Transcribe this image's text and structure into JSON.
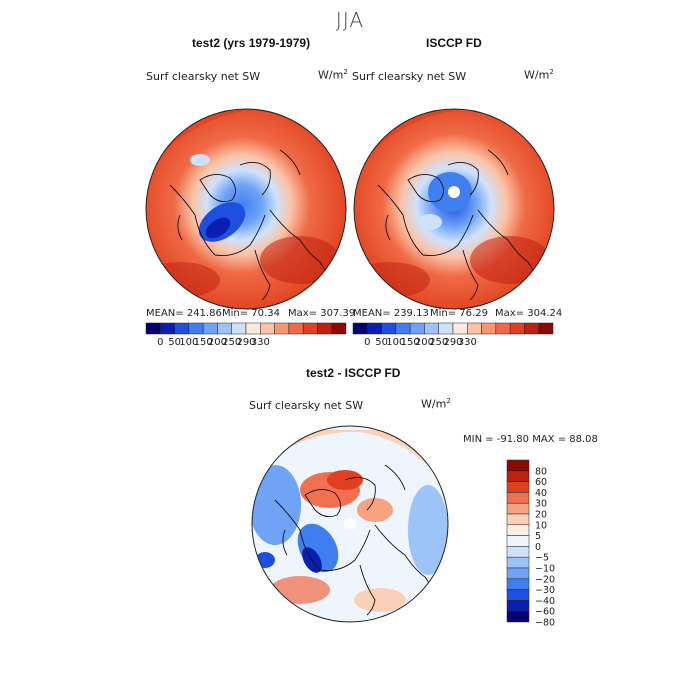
{
  "figure": {
    "main_title": "JJA"
  },
  "panels": [
    {
      "title": "test2 (yrs 1979-1979)",
      "variable": "Surf clearsky net SW",
      "units_base": "W/m",
      "units_exp": "2",
      "mean_text": "MEAN= 241.86",
      "min_text": "Min=   70.34",
      "max_text": "Max= 307.39"
    },
    {
      "title": "ISCCP FD",
      "variable": "Surf clearsky net SW",
      "units_base": "W/m",
      "units_exp": "2",
      "mean_text": "MEAN= 239.13",
      "min_text": "Min=   76.29",
      "max_text": "Max= 304.24"
    },
    {
      "title": "test2 - ISCCP FD",
      "variable": "Surf clearsky net SW",
      "units_base": "W/m",
      "units_exp": "2",
      "minmax_text": "MIN = -91.80 MAX =  88.08"
    }
  ],
  "colors": {
    "abs_scale": [
      "#08006e",
      "#0a1fb0",
      "#1f4fe0",
      "#3f7ff0",
      "#6ea3f5",
      "#9dc4f9",
      "#cfe2fb",
      "#fde9df",
      "#fbc3a6",
      "#f79670",
      "#f06a45",
      "#e0401f",
      "#c0200e",
      "#8a0a05"
    ],
    "diff_scale": [
      "#08006e",
      "#0a1fb0",
      "#1f4fe0",
      "#3f7ff0",
      "#6ea3f5",
      "#9dc4f9",
      "#cfe2fb",
      "#eef5fd",
      "#fdeee5",
      "#fbd0b8",
      "#f7a280",
      "#f07050",
      "#e0401f",
      "#c0200e",
      "#8a0a05"
    ]
  },
  "chart_data": [
    {
      "type": "heatmap",
      "projection": "north-polar-stereographic",
      "title": "test2 (yrs 1979-1979)",
      "variable": "Surf clearsky net SW",
      "units": "W/m2",
      "season": "JJA",
      "mean": 241.86,
      "min": 70.34,
      "max": 307.39,
      "levels": [
        0,
        50,
        100,
        150,
        200,
        250,
        290,
        330
      ],
      "colorbar_ticks": [
        "0",
        "50",
        "100",
        "150",
        "200",
        "250",
        "290",
        "330"
      ]
    },
    {
      "type": "heatmap",
      "projection": "north-polar-stereographic",
      "title": "ISCCP FD",
      "variable": "Surf clearsky net SW",
      "units": "W/m2",
      "season": "JJA",
      "mean": 239.13,
      "min": 76.29,
      "max": 304.24,
      "levels": [
        0,
        50,
        100,
        150,
        200,
        250,
        290,
        330
      ],
      "colorbar_ticks": [
        "0",
        "50",
        "100",
        "150",
        "200",
        "250",
        "290",
        "330"
      ]
    },
    {
      "type": "heatmap",
      "projection": "north-polar-stereographic",
      "title": "test2 - ISCCP FD",
      "variable": "Surf clearsky net SW",
      "units": "W/m2",
      "season": "JJA",
      "min": -91.8,
      "max": 88.08,
      "levels": [
        -80,
        -60,
        -40,
        -30,
        -20,
        -10,
        -5,
        0,
        5,
        10,
        20,
        30,
        40,
        60,
        80
      ],
      "colorbar_ticks": [
        "80",
        "60",
        "40",
        "30",
        "20",
        "10",
        "5",
        "0",
        "−5",
        "−10",
        "−20",
        "−30",
        "−40",
        "−60",
        "−80"
      ]
    }
  ]
}
